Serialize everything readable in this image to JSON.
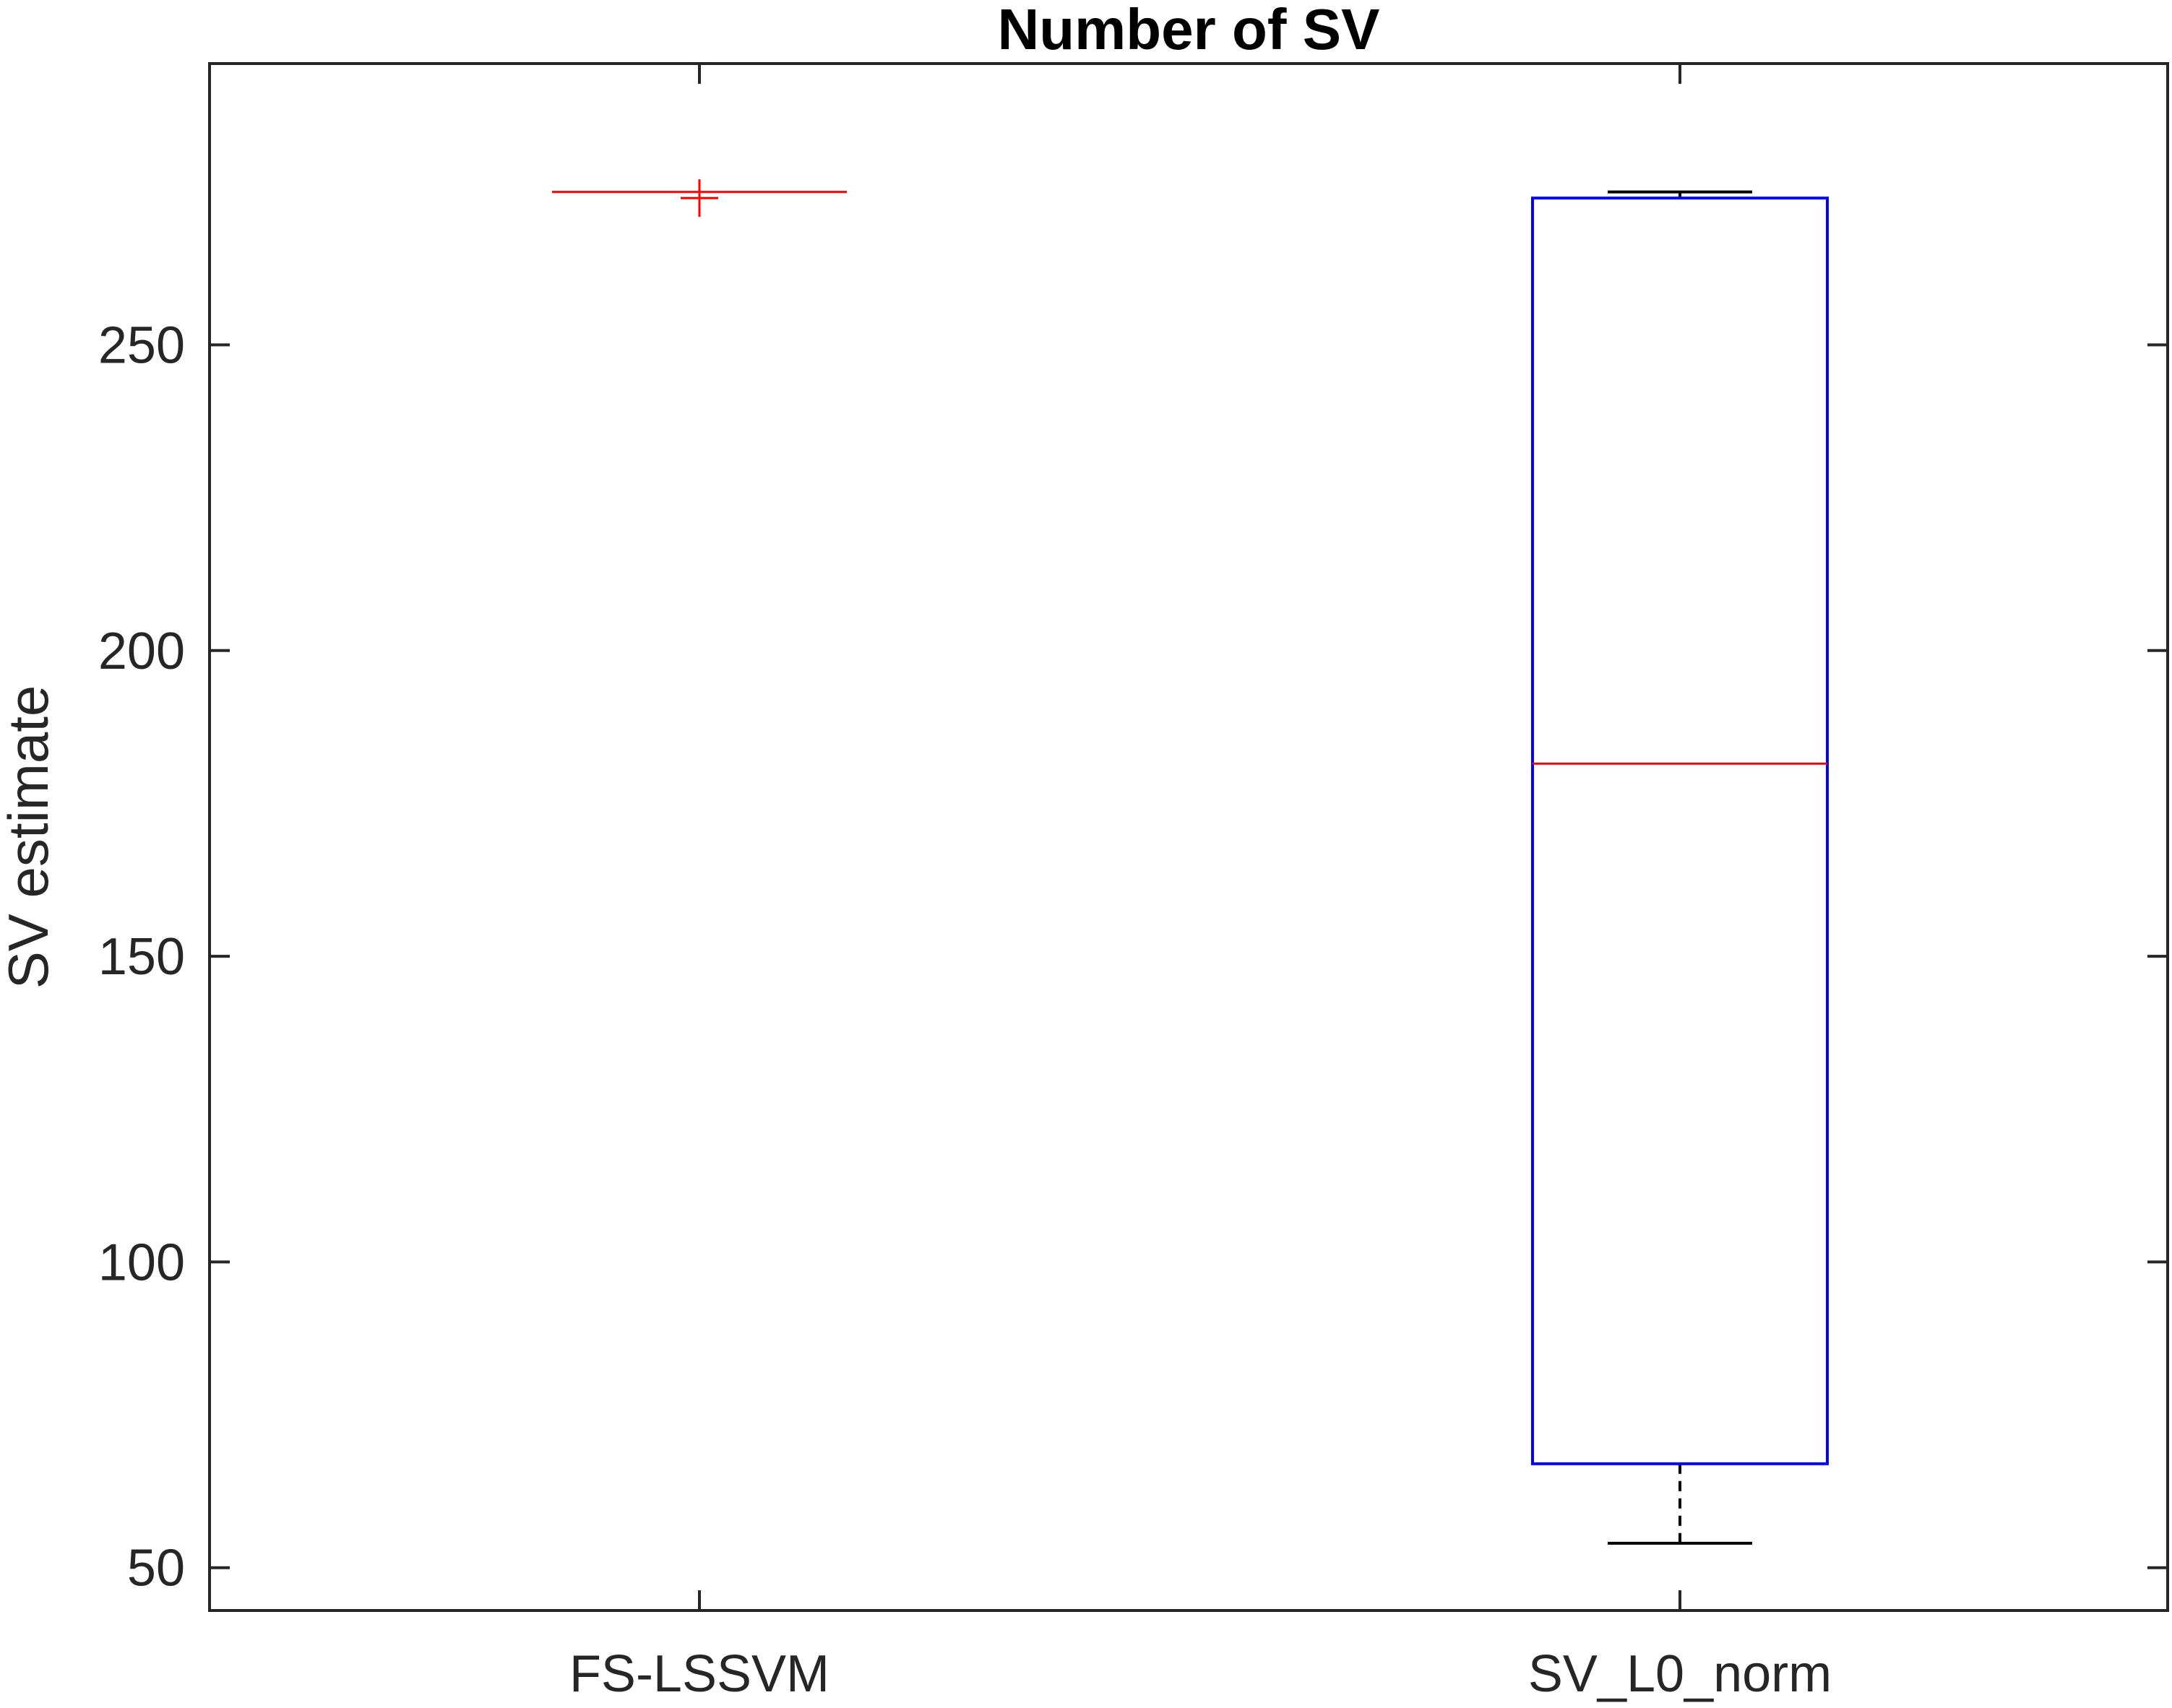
{
  "chart_data": {
    "type": "boxplot",
    "title": "Number of SV",
    "xlabel": "",
    "ylabel": "SV estimate",
    "ylim": [
      43,
      296
    ],
    "yticks": [
      50,
      100,
      150,
      200,
      250
    ],
    "grid": false,
    "categories": [
      "FS-LSSVM",
      "SV_L0_norm"
    ],
    "boxes": [
      {
        "name": "FS-LSSVM",
        "whisker_low": 275,
        "q1": 275,
        "median": 275,
        "q3": 275,
        "whisker_high": 275,
        "outliers": [
          274
        ]
      },
      {
        "name": "SV_L0_norm",
        "whisker_low": 54,
        "q1": 67,
        "median": 181.5,
        "q3": 274,
        "whisker_high": 275,
        "outliers": []
      }
    ],
    "colors": {
      "box": "#0000ff",
      "median": "#ff0000",
      "whisker": "#000000",
      "outlier": "#ff0000",
      "axis": "#262626"
    }
  }
}
